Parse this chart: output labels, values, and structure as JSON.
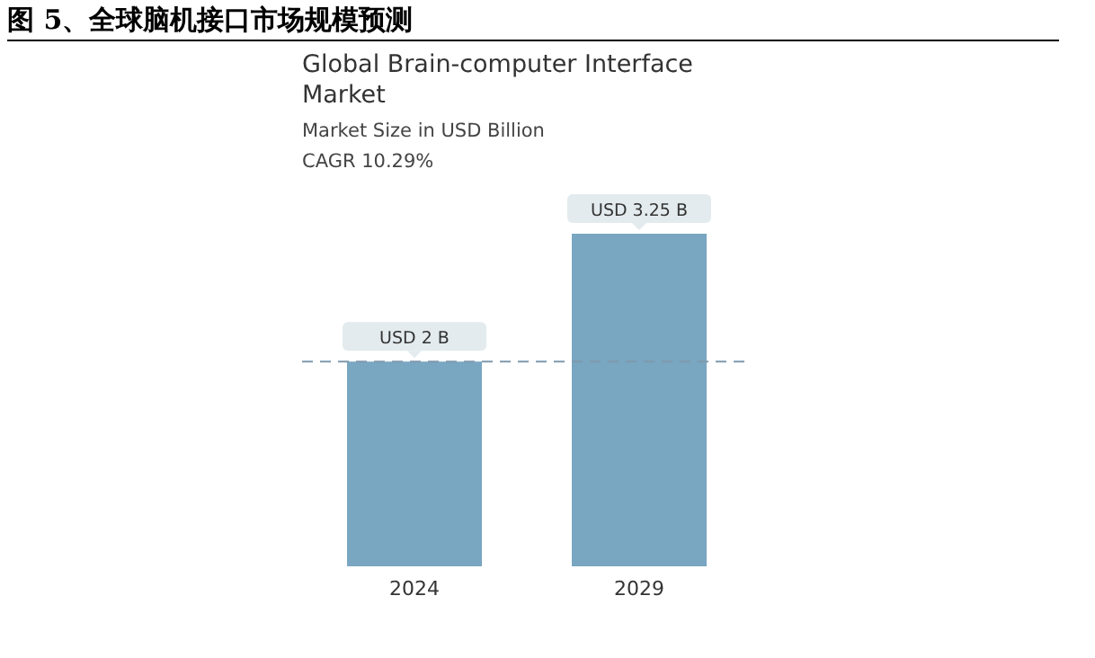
{
  "chart_data": {
    "type": "bar",
    "title": "图 5、全球脑机接口市场规模预测",
    "subtitle": "Global Brain-computer Interface Market",
    "ylabel": "Market Size in USD Billion",
    "annotations": [
      "CAGR 10.29%"
    ],
    "categories": [
      "2024",
      "2029"
    ],
    "values": [
      2,
      3.25
    ],
    "value_labels": [
      "USD 2 B",
      "USD 3.25 B"
    ],
    "color": "#79a6c1",
    "ref_lines": [
      {
        "axis": "y",
        "value": 2,
        "label": null,
        "color": "#7f99ad",
        "line_style": "dashed"
      }
    ],
    "grid": false,
    "legend": false
  }
}
